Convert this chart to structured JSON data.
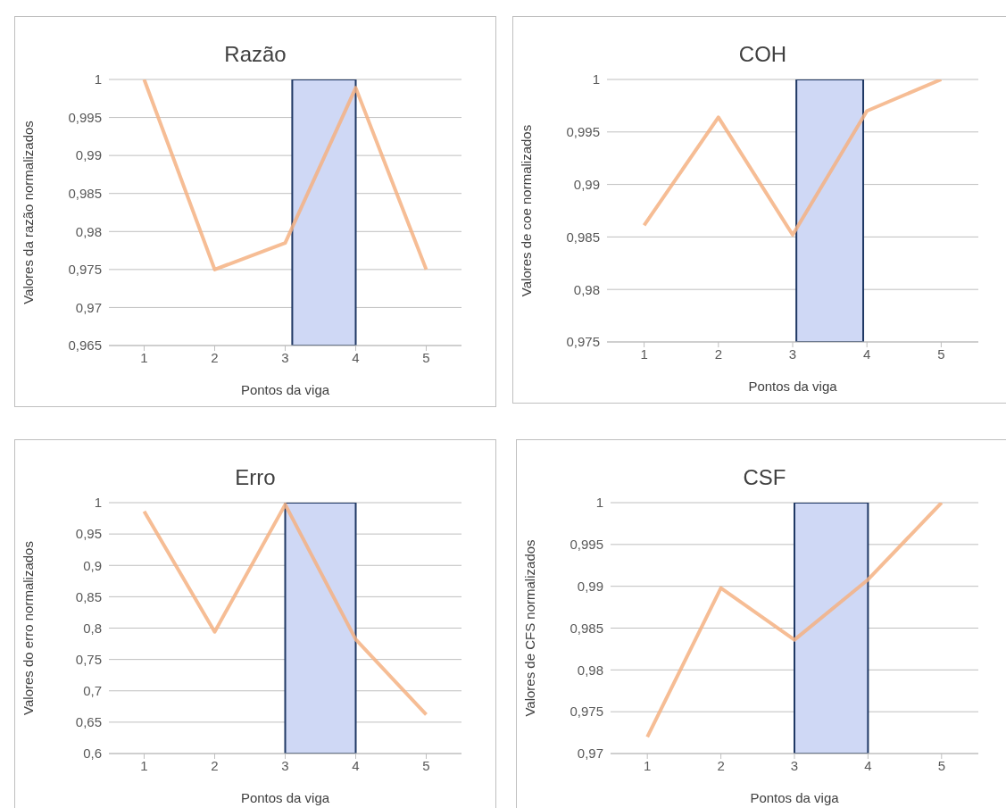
{
  "chart_data": [
    {
      "type": "line",
      "title": "Razão",
      "xlabel": "Pontos da viga",
      "ylabel": "Valores da razão normalizados",
      "x": [
        1,
        2,
        3,
        4,
        5
      ],
      "xlim": [
        0.5,
        5.5
      ],
      "xticks": [
        1,
        2,
        3,
        4,
        5
      ],
      "ylim": [
        0.965,
        1
      ],
      "yticks": [
        {
          "value": 0.965,
          "label": "0,965"
        },
        {
          "value": 0.97,
          "label": "0,97"
        },
        {
          "value": 0.975,
          "label": "0,975"
        },
        {
          "value": 0.98,
          "label": "0,98"
        },
        {
          "value": 0.985,
          "label": "0,985"
        },
        {
          "value": 0.99,
          "label": "0,99"
        },
        {
          "value": 0.995,
          "label": "0,995"
        },
        {
          "value": 1,
          "label": "1"
        }
      ],
      "grid": "y",
      "series": [
        {
          "color": "#f4b183",
          "values": [
            1,
            0.975,
            0.9785,
            0.9989,
            0.975
          ]
        }
      ],
      "bands": [
        {
          "axis": "x",
          "from": 3.1,
          "to": 4,
          "color": "#cfd8f5"
        }
      ]
    },
    {
      "type": "line",
      "title": "COH",
      "xlabel": "Pontos da viga",
      "ylabel": "Valores de coe normalizados",
      "x": [
        1,
        2,
        3,
        4,
        5
      ],
      "xlim": [
        0.5,
        5.5
      ],
      "xticks": [
        1,
        2,
        3,
        4,
        5
      ],
      "ylim": [
        0.975,
        1
      ],
      "yticks": [
        {
          "value": 0.975,
          "label": "0,975"
        },
        {
          "value": 0.98,
          "label": "0,98"
        },
        {
          "value": 0.985,
          "label": "0,985"
        },
        {
          "value": 0.99,
          "label": "0,99"
        },
        {
          "value": 0.995,
          "label": "0,995"
        },
        {
          "value": 1,
          "label": "1"
        }
      ],
      "grid": "y",
      "series": [
        {
          "color": "#f4b183",
          "values": [
            0.9861,
            0.9964,
            0.9852,
            0.997,
            1
          ]
        }
      ],
      "bands": [
        {
          "axis": "x",
          "from": 3.05,
          "to": 3.95,
          "color": "#cfd8f5"
        }
      ]
    },
    {
      "type": "line",
      "title": "Erro",
      "xlabel": "Pontos da viga",
      "ylabel": "Valores do erro normalizados",
      "x": [
        1,
        2,
        3,
        4,
        5
      ],
      "xlim": [
        0.5,
        5.5
      ],
      "xticks": [
        1,
        2,
        3,
        4,
        5
      ],
      "ylim": [
        0.6,
        1
      ],
      "yticks": [
        {
          "value": 0.6,
          "label": "0,6"
        },
        {
          "value": 0.65,
          "label": "0,65"
        },
        {
          "value": 0.7,
          "label": "0,7"
        },
        {
          "value": 0.75,
          "label": "0,75"
        },
        {
          "value": 0.8,
          "label": "0,8"
        },
        {
          "value": 0.85,
          "label": "0,85"
        },
        {
          "value": 0.9,
          "label": "0,9"
        },
        {
          "value": 0.95,
          "label": "0,95"
        },
        {
          "value": 1,
          "label": "1"
        }
      ],
      "grid": "y",
      "series": [
        {
          "color": "#f4b183",
          "values": [
            0.986,
            0.794,
            0.997,
            0.782,
            0.662
          ]
        }
      ],
      "bands": [
        {
          "axis": "x",
          "from": 3,
          "to": 4,
          "color": "#cfd8f5"
        }
      ]
    },
    {
      "type": "line",
      "title": "CSF",
      "xlabel": "Pontos da viga",
      "ylabel": "Valores de CFS normalizados",
      "x": [
        1,
        2,
        3,
        4,
        5
      ],
      "xlim": [
        0.5,
        5.5
      ],
      "xticks": [
        1,
        2,
        3,
        4,
        5
      ],
      "ylim": [
        0.97,
        1
      ],
      "yticks": [
        {
          "value": 0.97,
          "label": "0,97"
        },
        {
          "value": 0.975,
          "label": "0,975"
        },
        {
          "value": 0.98,
          "label": "0,98"
        },
        {
          "value": 0.985,
          "label": "0,985"
        },
        {
          "value": 0.99,
          "label": "0,99"
        },
        {
          "value": 0.995,
          "label": "0,995"
        },
        {
          "value": 1,
          "label": "1"
        }
      ],
      "grid": "y",
      "series": [
        {
          "color": "#f4b183",
          "values": [
            0.972,
            0.9898,
            0.9836,
            0.9908,
            1
          ]
        }
      ],
      "bands": [
        {
          "axis": "x",
          "from": 3,
          "to": 4,
          "color": "#cfd8f5"
        }
      ]
    }
  ]
}
